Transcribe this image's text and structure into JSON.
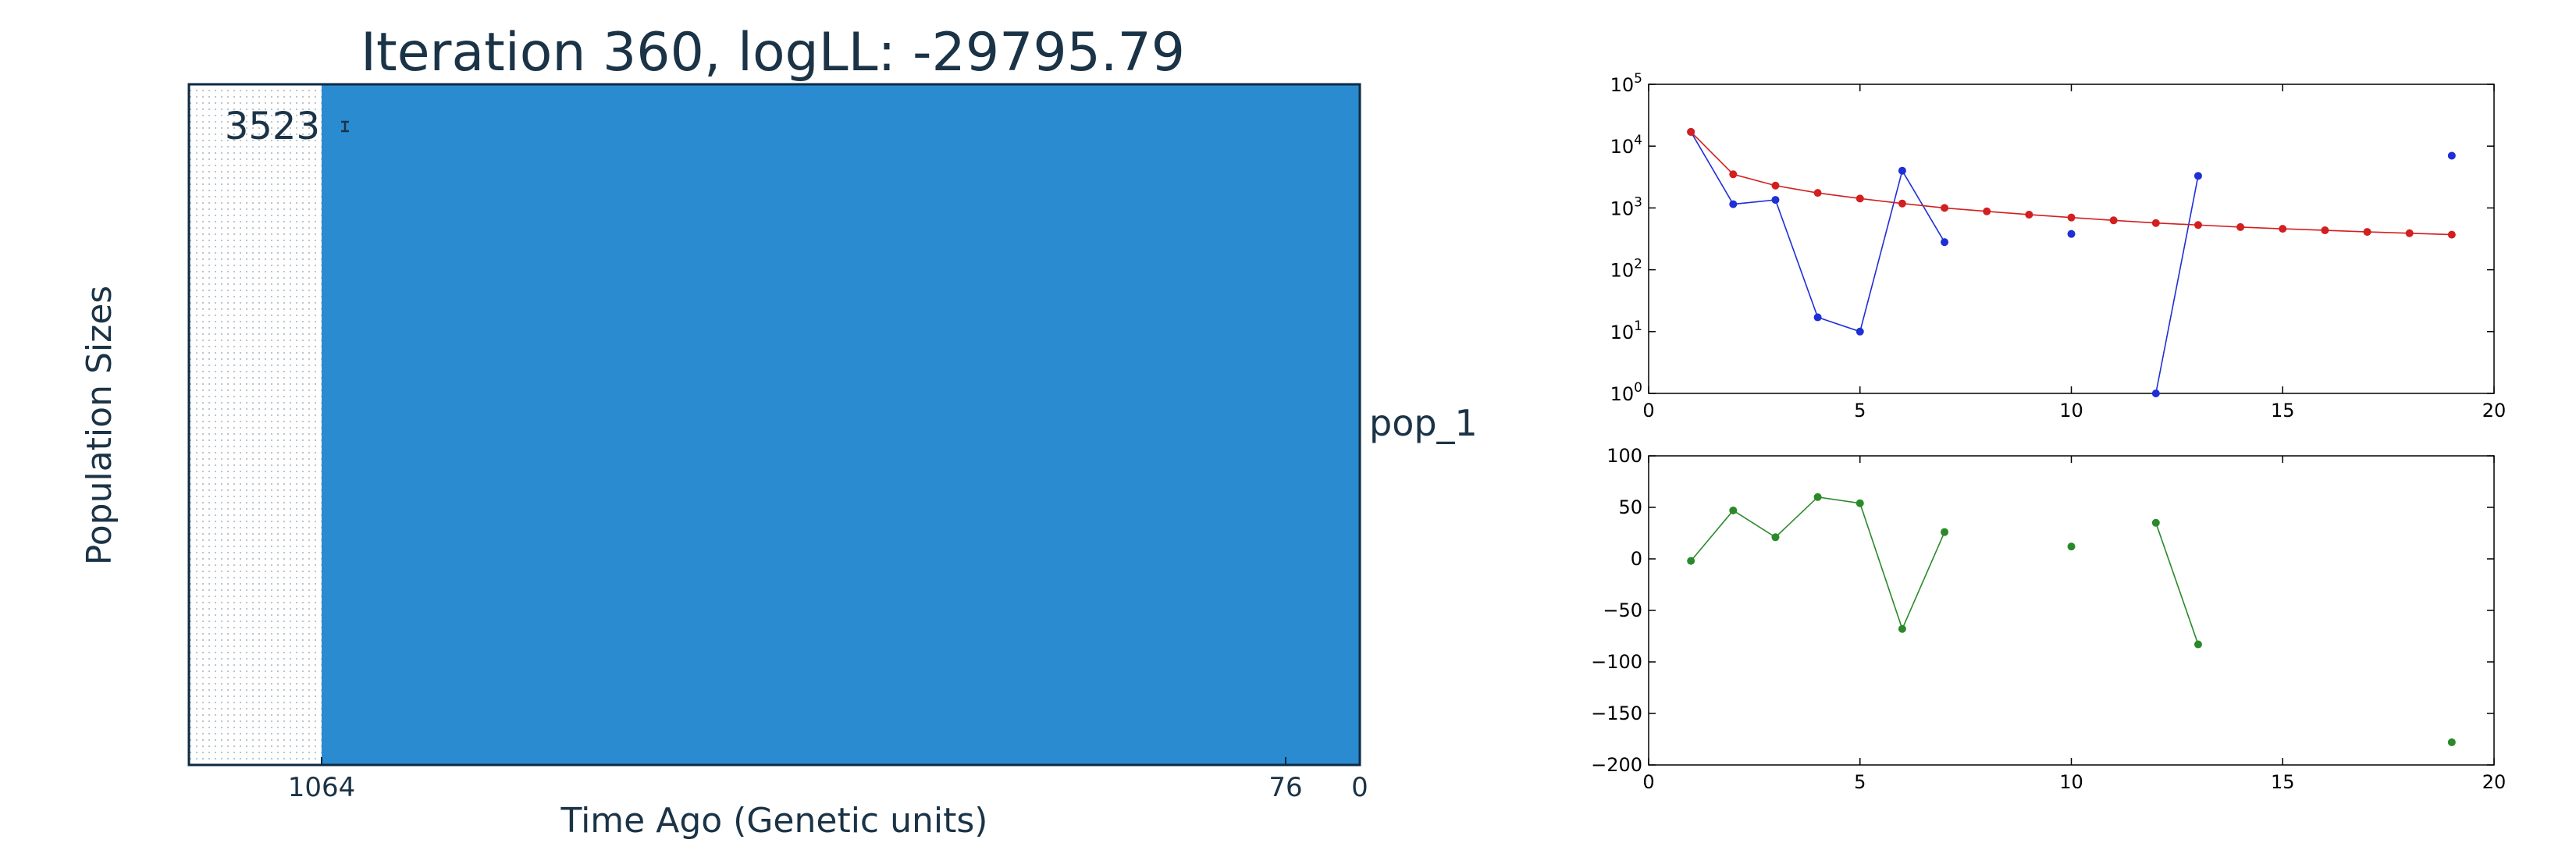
{
  "colors": {
    "text": "#1b3346",
    "pop_fill": "#2a8bd0",
    "pop_frame": "#0b2a44",
    "red_series": "#d21f1f",
    "blue_series": "#1f2fd6",
    "green_series": "#2a8a2a"
  },
  "chart_data": [
    {
      "type": "area",
      "title": "Iteration 360, logLL:  -29795.79",
      "xlabel": "Time Ago (Genetic units)",
      "ylabel": "Population Sizes",
      "x_ticks": [
        {
          "value": 1064,
          "label": "1064"
        },
        {
          "value": 76,
          "label": "76"
        },
        {
          "value": 0,
          "label": "0"
        }
      ],
      "series": [
        {
          "name": "pop_1",
          "size": 3523,
          "size_label": "3523",
          "start": 1064,
          "end": 0
        }
      ]
    },
    {
      "type": "line",
      "yscale": "log",
      "xlim": [
        0,
        20
      ],
      "ylim": [
        1,
        100000
      ],
      "x_ticks": [
        {
          "value": 0,
          "label": "0"
        },
        {
          "value": 5,
          "label": "5"
        },
        {
          "value": 10,
          "label": "10"
        },
        {
          "value": 15,
          "label": "15"
        },
        {
          "value": 20,
          "label": "20"
        }
      ],
      "y_ticks": [
        {
          "value": 1,
          "base": "10",
          "exp": "0"
        },
        {
          "value": 10,
          "base": "10",
          "exp": "1"
        },
        {
          "value": 100,
          "base": "10",
          "exp": "2"
        },
        {
          "value": 1000,
          "base": "10",
          "exp": "3"
        },
        {
          "value": 10000,
          "base": "10",
          "exp": "4"
        },
        {
          "value": 100000,
          "base": "10",
          "exp": "5"
        }
      ],
      "series": [
        {
          "color": "#1f2fd6",
          "points": [
            [
              1,
              17000
            ],
            [
              2,
              1150
            ],
            [
              3,
              1350
            ],
            [
              4,
              17
            ],
            [
              5,
              10
            ],
            [
              6,
              4000
            ],
            [
              7,
              280
            ],
            [
              null,
              null
            ],
            [
              10,
              380
            ],
            [
              null,
              null
            ],
            [
              12,
              1
            ],
            [
              13,
              3300
            ],
            [
              null,
              null
            ],
            [
              19,
              7000
            ]
          ]
        },
        {
          "color": "#d21f1f",
          "points": [
            [
              1,
              17000
            ],
            [
              2,
              3500
            ],
            [
              3,
              2300
            ],
            [
              4,
              1750
            ],
            [
              5,
              1420
            ],
            [
              6,
              1180
            ],
            [
              7,
              1000
            ],
            [
              8,
              880
            ],
            [
              9,
              780
            ],
            [
              10,
              700
            ],
            [
              11,
              630
            ],
            [
              12,
              570
            ],
            [
              13,
              530
            ],
            [
              14,
              490
            ],
            [
              15,
              460
            ],
            [
              16,
              435
            ],
            [
              17,
              410
            ],
            [
              18,
              390
            ],
            [
              19,
              370
            ]
          ]
        }
      ]
    },
    {
      "type": "line",
      "xlim": [
        0,
        20
      ],
      "ylim": [
        -200,
        100
      ],
      "x_ticks": [
        {
          "value": 0,
          "label": "0"
        },
        {
          "value": 5,
          "label": "5"
        },
        {
          "value": 10,
          "label": "10"
        },
        {
          "value": 15,
          "label": "15"
        },
        {
          "value": 20,
          "label": "20"
        }
      ],
      "y_ticks": [
        {
          "value": 100,
          "label": "100"
        },
        {
          "value": 50,
          "label": "50"
        },
        {
          "value": 0,
          "label": "0"
        },
        {
          "value": -50,
          "label": "−50"
        },
        {
          "value": -100,
          "label": "−100"
        },
        {
          "value": -150,
          "label": "−150"
        },
        {
          "value": -200,
          "label": "−200"
        }
      ],
      "series": [
        {
          "color": "#2a8a2a",
          "points": [
            [
              1,
              -2
            ],
            [
              2,
              47
            ],
            [
              3,
              21
            ],
            [
              4,
              60
            ],
            [
              5,
              54
            ],
            [
              6,
              -68
            ],
            [
              7,
              26
            ],
            [
              null,
              null
            ],
            [
              10,
              12
            ],
            [
              null,
              null
            ],
            [
              12,
              35
            ],
            [
              13,
              -83
            ],
            [
              null,
              null
            ],
            [
              19,
              -178
            ]
          ]
        }
      ]
    }
  ]
}
